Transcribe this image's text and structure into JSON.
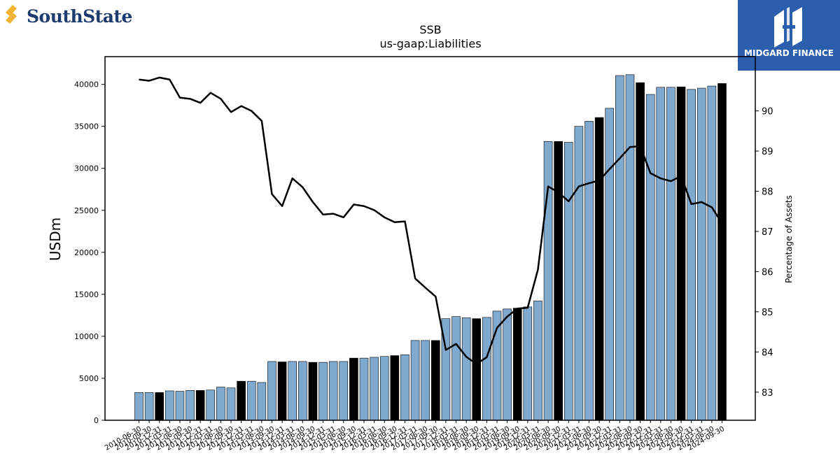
{
  "left_logo": {
    "text": "SouthState",
    "colors": {
      "mark": "#f2b233",
      "text": "#1c3b6e"
    }
  },
  "right_logo": {
    "text": "MIDGARD FINANCE",
    "background": "#2b5fad"
  },
  "chart_data": {
    "type": "bar",
    "title": "SSB",
    "subtitle": "us-gaap:Liabilities",
    "ylabel": "USDm",
    "y2label": "Percentage of Assets",
    "ylim": [
      0,
      43300
    ],
    "y_ticks": [
      0,
      5000,
      10000,
      15000,
      20000,
      25000,
      30000,
      35000,
      40000
    ],
    "y2lim": [
      82.3,
      91.35
    ],
    "y2_ticks": [
      83,
      84,
      85,
      86,
      87,
      88,
      89,
      90
    ],
    "categories": [
      "2010-06-30",
      "2010-09-30",
      "2010-12-31",
      "2011-03-31",
      "2011-06-30",
      "2011-09-30",
      "2011-12-31",
      "2012-03-31",
      "2012-06-30",
      "2012-09-30",
      "2012-12-31",
      "2013-03-31",
      "2013-06-30",
      "2013-09-30",
      "2013-12-31",
      "2014-03-31",
      "2014-06-30",
      "2014-09-30",
      "2014-12-31",
      "2015-03-31",
      "2015-06-30",
      "2015-09-30",
      "2015-12-31",
      "2016-03-31",
      "2016-06-30",
      "2016-09-30",
      "2016-12-31",
      "2017-03-31",
      "2017-06-30",
      "2017-09-30",
      "2017-12-31",
      "2018-03-31",
      "2018-06-30",
      "2018-09-30",
      "2018-12-31",
      "2019-03-31",
      "2019-06-30",
      "2019-09-30",
      "2019-12-31",
      "2020-03-31",
      "2020-06-30",
      "2020-09-30",
      "2020-12-31",
      "2021-03-31",
      "2021-06-30",
      "2021-09-30",
      "2021-12-31",
      "2022-03-31",
      "2022-06-30",
      "2022-09-30",
      "2022-12-31",
      "2023-03-31",
      "2023-06-30",
      "2023-09-30",
      "2023-12-31",
      "2024-03-31",
      "2024-06-30",
      "2024-09-30"
    ],
    "series": [
      {
        "kind": "bar",
        "values": [
          3300,
          3300,
          3300,
          3500,
          3450,
          3550,
          3550,
          3600,
          3950,
          3850,
          4650,
          4650,
          4500,
          7000,
          6950,
          7000,
          7000,
          6900,
          6900,
          7000,
          7000,
          7400,
          7400,
          7500,
          7600,
          7700,
          7800,
          9500,
          9500,
          9500,
          12100,
          12350,
          12200,
          12100,
          12250,
          13000,
          13250,
          13350,
          13500,
          14200,
          33200,
          33200,
          33100,
          35000,
          35600,
          36050,
          37150,
          41050,
          41150,
          40200,
          38800,
          39650,
          39650,
          39700,
          39400,
          39550,
          39800,
          40100
        ],
        "highlight": [
          false,
          false,
          true,
          false,
          false,
          false,
          true,
          false,
          false,
          false,
          true,
          false,
          false,
          false,
          true,
          false,
          false,
          true,
          false,
          false,
          false,
          true,
          false,
          false,
          false,
          true,
          false,
          false,
          false,
          true,
          false,
          false,
          false,
          true,
          false,
          false,
          false,
          true,
          false,
          false,
          false,
          true,
          false,
          false,
          false,
          true,
          false,
          false,
          false,
          true,
          false,
          false,
          false,
          true,
          false,
          false,
          false,
          true
        ],
        "color": "#7fa9cf",
        "highlight_color": "#000000"
      },
      {
        "kind": "line",
        "axis": "right",
        "values": [
          90.78,
          90.75,
          90.83,
          90.78,
          90.33,
          90.3,
          90.2,
          90.45,
          90.3,
          89.97,
          90.12,
          90.0,
          89.75,
          87.93,
          87.63,
          88.32,
          88.1,
          87.73,
          87.42,
          87.44,
          87.35,
          87.67,
          87.63,
          87.53,
          87.35,
          87.23,
          87.25,
          85.83,
          85.6,
          85.38,
          84.05,
          84.2,
          83.88,
          83.7,
          83.87,
          84.6,
          84.88,
          85.08,
          85.1,
          86.05,
          88.12,
          87.97,
          87.75,
          88.12,
          88.2,
          88.27,
          88.55,
          88.82,
          89.1,
          89.12,
          88.45,
          88.32,
          88.25,
          88.38,
          87.68,
          87.73,
          87.6,
          87.2
        ],
        "color": "#000000"
      }
    ],
    "grid": false,
    "legend": "none"
  }
}
